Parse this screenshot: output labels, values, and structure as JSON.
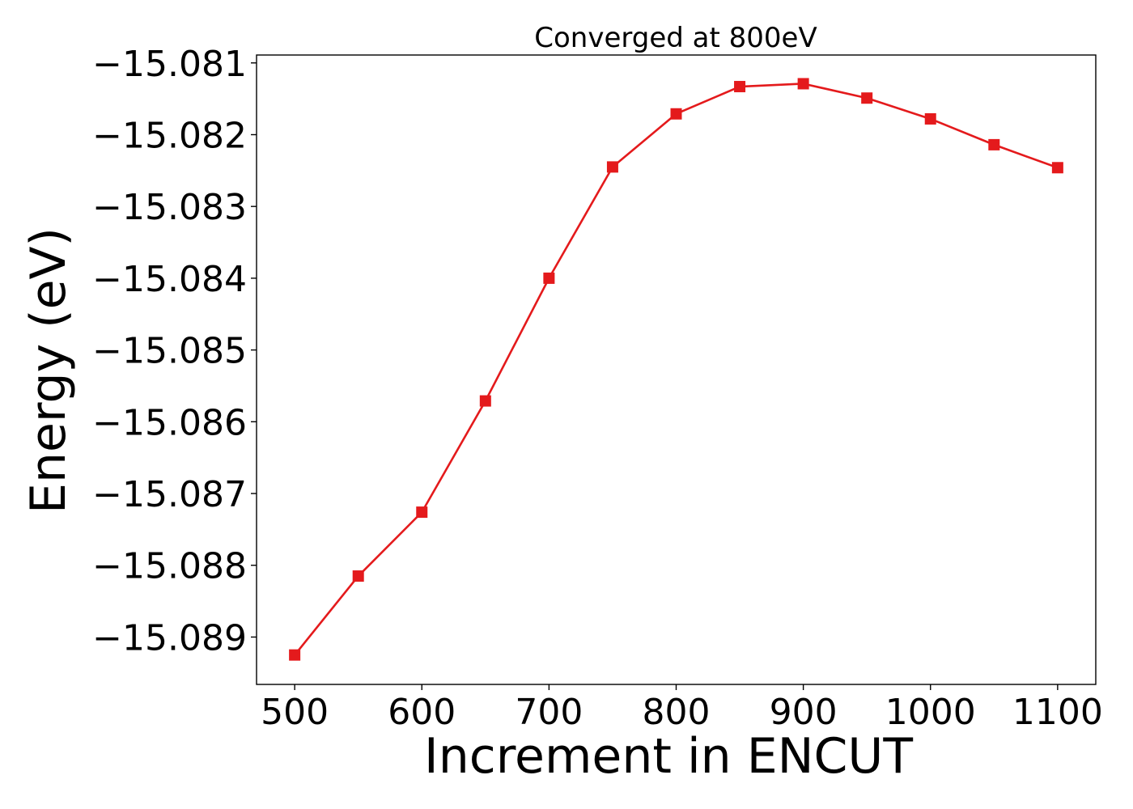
{
  "chart_data": {
    "type": "line",
    "title": "Converged at 800eV",
    "xlabel": "Increment in ENCUT",
    "ylabel": "Energy (eV)",
    "x": [
      500,
      550,
      600,
      650,
      700,
      750,
      800,
      850,
      900,
      950,
      1000,
      1050,
      1100
    ],
    "series": [
      {
        "values": [
          -15.08925,
          -15.08815,
          -15.08726,
          -15.08571,
          -15.084,
          -15.08245,
          -15.08171,
          -15.08133,
          -15.08129,
          -15.08149,
          -15.08178,
          -15.08214,
          -15.08246
        ],
        "color": "#e41a1c",
        "marker": "square"
      }
    ],
    "xlim": [
      470,
      1130
    ],
    "ylim": [
      -15.08966,
      -15.08089
    ],
    "xticks": [
      500,
      600,
      700,
      800,
      900,
      1000,
      1100
    ],
    "xtick_labels": [
      "500",
      "600",
      "700",
      "800",
      "900",
      "1000",
      "1100"
    ],
    "yticks": [
      -15.081,
      -15.082,
      -15.083,
      -15.084,
      -15.085,
      -15.086,
      -15.087,
      -15.088,
      -15.089
    ],
    "ytick_labels": [
      "−15.081",
      "−15.082",
      "−15.083",
      "−15.084",
      "−15.085",
      "−15.086",
      "−15.087",
      "−15.088",
      "−15.089"
    ],
    "grid": false,
    "legend": false
  }
}
